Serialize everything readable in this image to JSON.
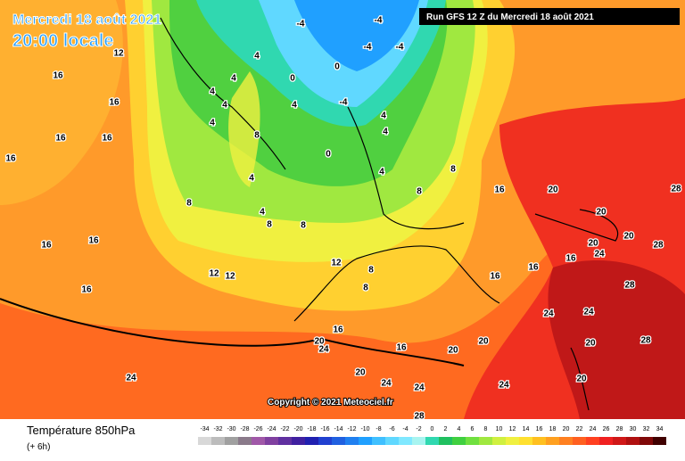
{
  "header": {
    "date": "Mercredi 18 août 2021",
    "time": "20:00 locale",
    "run": "Run GFS 12 Z du Mercredi 18 août 2021"
  },
  "copyright": "Copyright © 2021 Meteociel.fr",
  "legend": {
    "title": "Température 850hPa",
    "step": "(+ 6h)",
    "values": [
      -34,
      -32,
      -30,
      -28,
      -26,
      -24,
      -22,
      -20,
      -18,
      -16,
      -14,
      -12,
      -10,
      -8,
      -6,
      -4,
      -2,
      0,
      2,
      4,
      6,
      8,
      10,
      12,
      14,
      16,
      18,
      20,
      22,
      24,
      26,
      28,
      30,
      32,
      34
    ],
    "colors": [
      "#d8d8d8",
      "#bcbcbc",
      "#a0a0a0",
      "#8a7a8a",
      "#a058a8",
      "#8040a0",
      "#6030a0",
      "#4020a0",
      "#2020b0",
      "#2040d0",
      "#2060e0",
      "#2080f0",
      "#20a0ff",
      "#40c0ff",
      "#60d8ff",
      "#80e8ff",
      "#a8f4f0",
      "#30d8b0",
      "#20c060",
      "#40d040",
      "#70e040",
      "#a0e840",
      "#d0f040",
      "#f0f040",
      "#ffe030",
      "#ffc020",
      "#ffa020",
      "#ff8020",
      "#ff6020",
      "#ff4020",
      "#f02020",
      "#d01818",
      "#b01010",
      "#800808",
      "#400000"
    ]
  },
  "map_labels": [
    12,
    16,
    16,
    16,
    16,
    16,
    16,
    16,
    16,
    12,
    12,
    8,
    4,
    4,
    4,
    4,
    4,
    8,
    4,
    4,
    8,
    8,
    12,
    8,
    8,
    16,
    20,
    24,
    24,
    20,
    24,
    24,
    16,
    20,
    20,
    24,
    28,
    16,
    16,
    16,
    16,
    20,
    20,
    28,
    28,
    24,
    24,
    20,
    28,
    20,
    -4,
    -4,
    -4,
    0,
    -4,
    0,
    -4,
    4,
    4,
    0,
    4,
    4,
    8,
    8,
    20,
    28,
    20,
    24
  ]
}
